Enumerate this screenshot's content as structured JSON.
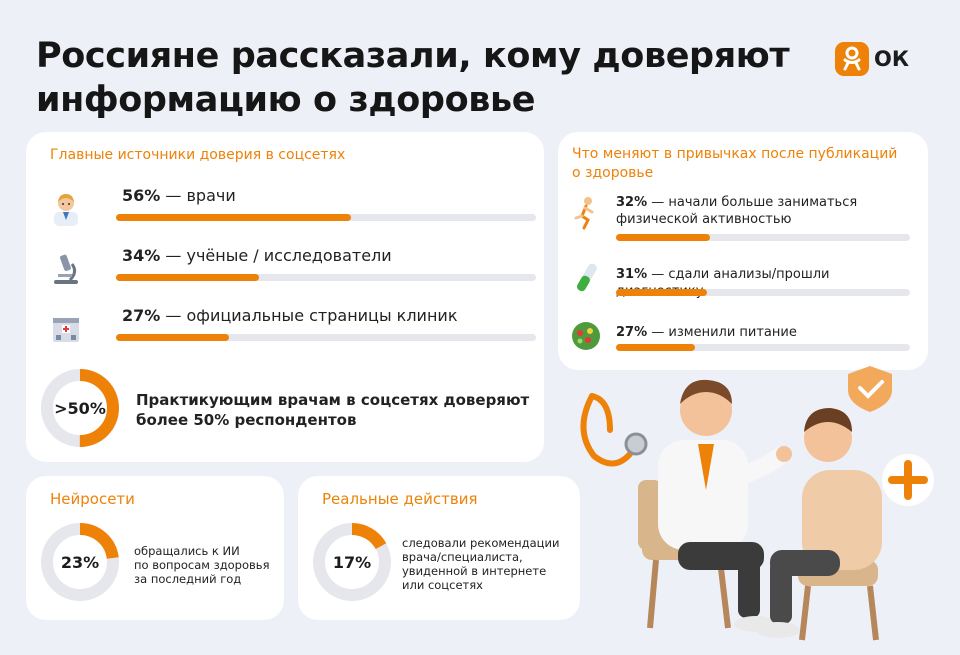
{
  "title": {
    "line1": "Россияне рассказали, кому доверяют",
    "line2": "информацию о здоровье"
  },
  "logo": {
    "text": "ОК",
    "icon": "odnoklassniki-icon",
    "color": "#ee8208"
  },
  "sources": {
    "heading": "Главные источники доверия в соцсетях",
    "items": [
      {
        "value": 56,
        "pct": "56%",
        "label": "— врачи",
        "icon": "doctor-icon"
      },
      {
        "value": 34,
        "pct": "34%",
        "label": "— учёные / исследователи",
        "icon": "microscope-icon"
      },
      {
        "value": 27,
        "pct": "27%",
        "label": "— официальные страницы клиник",
        "icon": "hospital-icon"
      }
    ],
    "highlight": {
      "value": 50,
      "label": ">50%",
      "text_line1": "Практикующим врачам в соцсетях доверяют",
      "text_line2": "более 50% респондентов"
    }
  },
  "habits": {
    "heading_line1": "Что меняют в привычках после публикаций",
    "heading_line2": "о здоровье",
    "items": [
      {
        "value": 32,
        "pct": "32%",
        "line1": "— начали больше заниматься",
        "line2": "физической активностью",
        "icon": "running-icon"
      },
      {
        "value": 31,
        "pct": "31%",
        "line1": "— сдали анализы/прошли диагностику",
        "line2": "",
        "icon": "test-tube-icon"
      },
      {
        "value": 27,
        "pct": "27%",
        "line1": "— изменили питание",
        "line2": "",
        "icon": "salad-icon"
      }
    ]
  },
  "ai": {
    "heading": "Нейросети",
    "value": 23,
    "label": "23%",
    "lines": [
      "обращались к ИИ",
      "по вопросам здоровья",
      "за последний год"
    ]
  },
  "actions": {
    "heading": "Реальные действия",
    "value": 17,
    "label": "17%",
    "lines": [
      "следовали рекомендации",
      "врача/специалиста,",
      "увиденной в интернете",
      "или соцсетях"
    ]
  },
  "colors": {
    "accent": "#ee8208",
    "track": "#e6e7ec",
    "background": "#eef0f8"
  },
  "illustration": {
    "icon": "doctor-patient-illustration"
  }
}
